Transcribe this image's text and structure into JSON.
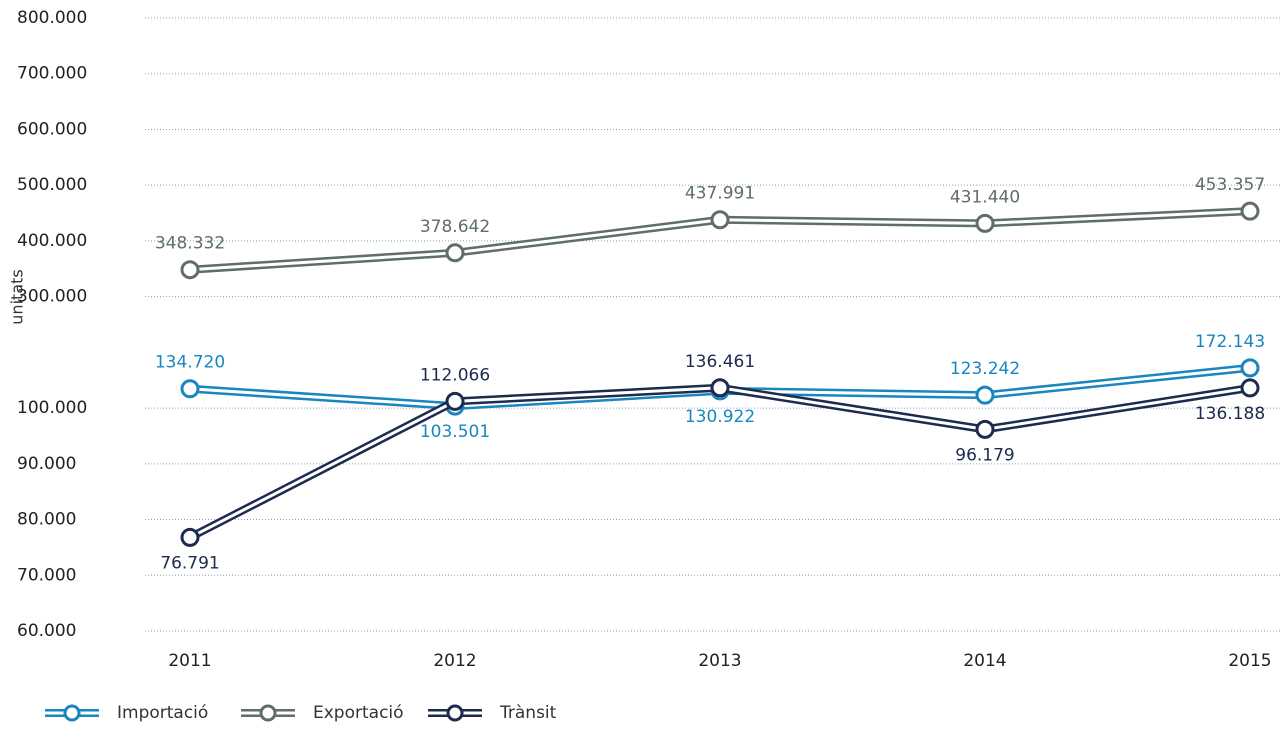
{
  "chart_data": {
    "type": "line",
    "y_label": "unitats",
    "categories": [
      "2011",
      "2012",
      "2013",
      "2014",
      "2015"
    ],
    "series": [
      {
        "name": "Importació",
        "color": "#1a86c0",
        "values": [
          134720,
          103501,
          130922,
          123242,
          172143
        ],
        "value_labels": [
          "134.720",
          "103.501",
          "130.922",
          "123.242",
          "172.143"
        ]
      },
      {
        "name": "Exportació",
        "color": "#5f6e66",
        "values": [
          348332,
          378642,
          437991,
          431440,
          453357
        ],
        "value_labels": [
          "348.332",
          "378.642",
          "437.991",
          "431.440",
          "453.357"
        ]
      },
      {
        "name": "Trànsit",
        "color": "#1c2b4e",
        "values": [
          76791,
          112066,
          136461,
          96179,
          136188
        ],
        "value_labels": [
          "76.791",
          "112.066",
          "136.461",
          "96.179",
          "136.188"
        ]
      }
    ],
    "ylim": [
      60000,
      800000
    ],
    "yticks": [
      {
        "value": 60000,
        "label": "60.000"
      },
      {
        "value": 70000,
        "label": "70.000"
      },
      {
        "value": 80000,
        "label": "80.000"
      },
      {
        "value": 90000,
        "label": "90.000"
      },
      {
        "value": 100000,
        "label": "100.000"
      },
      {
        "value": 300000,
        "label": "300.000"
      },
      {
        "value": 400000,
        "label": "400.000"
      },
      {
        "value": 500000,
        "label": "500.000"
      },
      {
        "value": 600000,
        "label": "600.000"
      },
      {
        "value": 700000,
        "label": "700.000"
      },
      {
        "value": 800000,
        "label": "800.000"
      }
    ],
    "grid": true,
    "legend": "bottom-left"
  }
}
